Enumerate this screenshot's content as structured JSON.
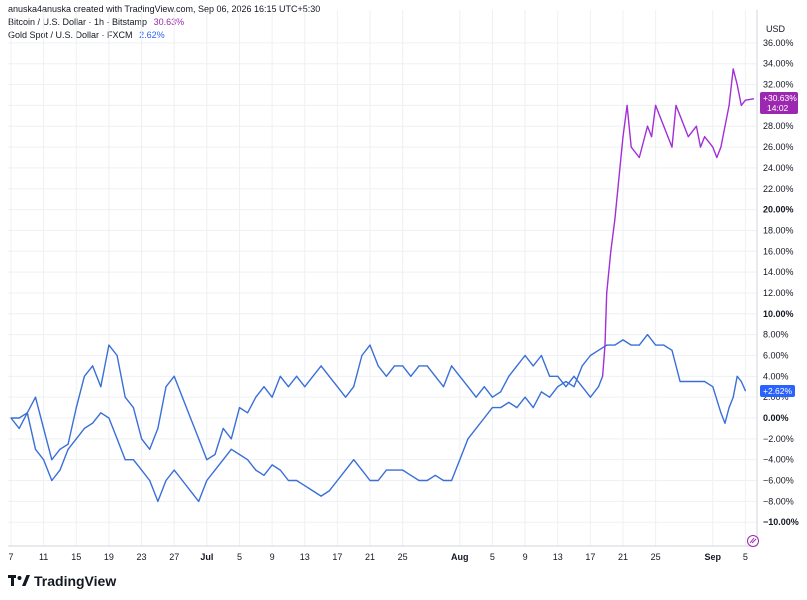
{
  "header": {
    "attribution": "anuska4anuska created with TradingView.com, Sep 06, 2026 16:15 UTC+5:30",
    "legend": [
      {
        "name": "Bitcoin / U.S. Dollar · 1h · Bitstamp",
        "value": "30.63%",
        "color": "#9c27b0"
      },
      {
        "name": "Gold Spot / U.S. Dollar · FXCM",
        "value": "2.62%",
        "color": "#2962ff"
      }
    ]
  },
  "axis": {
    "currency": "USD",
    "y_ticks": [
      {
        "label": "36.00%",
        "v": 36
      },
      {
        "label": "34.00%",
        "v": 34
      },
      {
        "label": "32.00%",
        "v": 32
      },
      {
        "label": "30.00%",
        "v": 30
      },
      {
        "label": "28.00%",
        "v": 28
      },
      {
        "label": "26.00%",
        "v": 26
      },
      {
        "label": "24.00%",
        "v": 24
      },
      {
        "label": "22.00%",
        "v": 22
      },
      {
        "label": "20.00%",
        "v": 20,
        "bold": true
      },
      {
        "label": "18.00%",
        "v": 18
      },
      {
        "label": "16.00%",
        "v": 16
      },
      {
        "label": "14.00%",
        "v": 14
      },
      {
        "label": "12.00%",
        "v": 12
      },
      {
        "label": "10.00%",
        "v": 10,
        "bold": true
      },
      {
        "label": "8.00%",
        "v": 8
      },
      {
        "label": "6.00%",
        "v": 6
      },
      {
        "label": "4.00%",
        "v": 4
      },
      {
        "label": "2.00%",
        "v": 2
      },
      {
        "label": "0.00%",
        "v": 0,
        "bold": true
      },
      {
        "label": "−2.00%",
        "v": -2
      },
      {
        "label": "−4.00%",
        "v": -4
      },
      {
        "label": "−6.00%",
        "v": -6
      },
      {
        "label": "−8.00%",
        "v": -8
      },
      {
        "label": "−10.00%",
        "v": -10,
        "bold": true
      }
    ],
    "x_ticks": [
      {
        "label": "7",
        "d": 0
      },
      {
        "label": "11",
        "d": 4
      },
      {
        "label": "15",
        "d": 8
      },
      {
        "label": "19",
        "d": 12
      },
      {
        "label": "23",
        "d": 16
      },
      {
        "label": "27",
        "d": 20
      },
      {
        "label": "Jul",
        "d": 24,
        "bold": true
      },
      {
        "label": "5",
        "d": 28
      },
      {
        "label": "9",
        "d": 32
      },
      {
        "label": "13",
        "d": 36
      },
      {
        "label": "17",
        "d": 40
      },
      {
        "label": "21",
        "d": 44
      },
      {
        "label": "25",
        "d": 48
      },
      {
        "label": "Aug",
        "d": 55,
        "bold": true
      },
      {
        "label": "5",
        "d": 59
      },
      {
        "label": "9",
        "d": 63
      },
      {
        "label": "13",
        "d": 67
      },
      {
        "label": "17",
        "d": 71
      },
      {
        "label": "21",
        "d": 75
      },
      {
        "label": "25",
        "d": 79
      },
      {
        "label": "Sep",
        "d": 86,
        "bold": true
      },
      {
        "label": "5",
        "d": 90
      }
    ]
  },
  "last_price_labels": {
    "btc_value": "+30.63%",
    "btc_time": "14:02",
    "gold_value": "+2.62%",
    "btc_color": "#9c27b0",
    "gold_color": "#2962ff"
  },
  "brand": {
    "name": "TradingView"
  },
  "chart_data": {
    "type": "line",
    "x_unit": "days since Jun 7",
    "y_unit": "percent change",
    "ylim": [
      -11.5,
      37
    ],
    "xlim": [
      0,
      91.5
    ],
    "grid": true,
    "series": [
      {
        "name": "Bitcoin / U.S. Dollar · 1h · Bitstamp",
        "color_blue_before": 72.5,
        "points": [
          [
            0,
            0
          ],
          [
            1,
            -1
          ],
          [
            2,
            0.5
          ],
          [
            3,
            2
          ],
          [
            4,
            -1
          ],
          [
            5,
            -4
          ],
          [
            6,
            -3
          ],
          [
            7,
            -2.5
          ],
          [
            8,
            1
          ],
          [
            9,
            4
          ],
          [
            10,
            5
          ],
          [
            11,
            3
          ],
          [
            12,
            7
          ],
          [
            13,
            6
          ],
          [
            14,
            2
          ],
          [
            15,
            1
          ],
          [
            16,
            -2
          ],
          [
            17,
            -3
          ],
          [
            18,
            -1
          ],
          [
            19,
            3
          ],
          [
            20,
            4
          ],
          [
            21,
            2
          ],
          [
            22,
            0
          ],
          [
            23,
            -2
          ],
          [
            24,
            -4
          ],
          [
            25,
            -3.5
          ],
          [
            26,
            -1
          ],
          [
            27,
            -2
          ],
          [
            28,
            1
          ],
          [
            29,
            0.5
          ],
          [
            30,
            2
          ],
          [
            31,
            3
          ],
          [
            32,
            2
          ],
          [
            33,
            4
          ],
          [
            34,
            3
          ],
          [
            35,
            4
          ],
          [
            36,
            3
          ],
          [
            37,
            4
          ],
          [
            38,
            5
          ],
          [
            39,
            4
          ],
          [
            40,
            3
          ],
          [
            41,
            2
          ],
          [
            42,
            3
          ],
          [
            43,
            6
          ],
          [
            44,
            7
          ],
          [
            45,
            5
          ],
          [
            46,
            4
          ],
          [
            47,
            5
          ],
          [
            48,
            5
          ],
          [
            49,
            4
          ],
          [
            50,
            5
          ],
          [
            51,
            5
          ],
          [
            52,
            4
          ],
          [
            53,
            3
          ],
          [
            54,
            5
          ],
          [
            55,
            4
          ],
          [
            56,
            3
          ],
          [
            57,
            2
          ],
          [
            58,
            3
          ],
          [
            59,
            2
          ],
          [
            60,
            2.5
          ],
          [
            61,
            4
          ],
          [
            62,
            5
          ],
          [
            63,
            6
          ],
          [
            64,
            5
          ],
          [
            65,
            6
          ],
          [
            66,
            4
          ],
          [
            67,
            4
          ],
          [
            68,
            3
          ],
          [
            69,
            4
          ],
          [
            70,
            3
          ],
          [
            71,
            2
          ],
          [
            72,
            3
          ],
          [
            72.5,
            4
          ],
          [
            72.8,
            7
          ],
          [
            73,
            12
          ],
          [
            73.5,
            16
          ],
          [
            74,
            19
          ],
          [
            74.5,
            23
          ],
          [
            75,
            27
          ],
          [
            75.5,
            30
          ],
          [
            76,
            26
          ],
          [
            77,
            25
          ],
          [
            78,
            28
          ],
          [
            78.5,
            27
          ],
          [
            79,
            30
          ],
          [
            80,
            28
          ],
          [
            80.5,
            27
          ],
          [
            81,
            26
          ],
          [
            81.5,
            30
          ],
          [
            82,
            29
          ],
          [
            83,
            27
          ],
          [
            84,
            28
          ],
          [
            84.5,
            26
          ],
          [
            85,
            27
          ],
          [
            86,
            26
          ],
          [
            86.5,
            25
          ],
          [
            87,
            26
          ],
          [
            87.5,
            28
          ],
          [
            88,
            30
          ],
          [
            88.5,
            33.5
          ],
          [
            89,
            32
          ],
          [
            89.5,
            30
          ],
          [
            90,
            30.5
          ],
          [
            91,
            30.63
          ]
        ]
      },
      {
        "name": "Gold Spot / U.S. Dollar · FXCM",
        "points": [
          [
            0,
            0
          ],
          [
            1,
            0
          ],
          [
            2,
            0.5
          ],
          [
            3,
            -3
          ],
          [
            4,
            -4
          ],
          [
            5,
            -6
          ],
          [
            6,
            -5
          ],
          [
            7,
            -3
          ],
          [
            8,
            -2
          ],
          [
            9,
            -1
          ],
          [
            10,
            -0.5
          ],
          [
            11,
            0.5
          ],
          [
            12,
            0
          ],
          [
            13,
            -2
          ],
          [
            14,
            -4
          ],
          [
            15,
            -4
          ],
          [
            16,
            -5
          ],
          [
            17,
            -6
          ],
          [
            18,
            -8
          ],
          [
            19,
            -6
          ],
          [
            20,
            -5
          ],
          [
            21,
            -6
          ],
          [
            22,
            -7
          ],
          [
            23,
            -8
          ],
          [
            24,
            -6
          ],
          [
            25,
            -5
          ],
          [
            26,
            -4
          ],
          [
            27,
            -3
          ],
          [
            28,
            -3.5
          ],
          [
            29,
            -4
          ],
          [
            30,
            -5
          ],
          [
            31,
            -5.5
          ],
          [
            32,
            -4.5
          ],
          [
            33,
            -5
          ],
          [
            34,
            -6
          ],
          [
            35,
            -6
          ],
          [
            36,
            -6.5
          ],
          [
            37,
            -7
          ],
          [
            38,
            -7.5
          ],
          [
            39,
            -7
          ],
          [
            40,
            -6
          ],
          [
            41,
            -5
          ],
          [
            42,
            -4
          ],
          [
            43,
            -5
          ],
          [
            44,
            -6
          ],
          [
            45,
            -6
          ],
          [
            46,
            -5
          ],
          [
            47,
            -5
          ],
          [
            48,
            -5
          ],
          [
            49,
            -5.5
          ],
          [
            50,
            -6
          ],
          [
            51,
            -6
          ],
          [
            52,
            -5.5
          ],
          [
            53,
            -6
          ],
          [
            54,
            -6
          ],
          [
            55,
            -4
          ],
          [
            56,
            -2
          ],
          [
            57,
            -1
          ],
          [
            58,
            0
          ],
          [
            59,
            1
          ],
          [
            60,
            1
          ],
          [
            61,
            1.5
          ],
          [
            62,
            1
          ],
          [
            63,
            2
          ],
          [
            64,
            1
          ],
          [
            65,
            2.5
          ],
          [
            66,
            2
          ],
          [
            67,
            3
          ],
          [
            68,
            3.5
          ],
          [
            69,
            3
          ],
          [
            70,
            5
          ],
          [
            71,
            6
          ],
          [
            72,
            6.5
          ],
          [
            73,
            7
          ],
          [
            74,
            7
          ],
          [
            75,
            7.5
          ],
          [
            76,
            7
          ],
          [
            77,
            7
          ],
          [
            78,
            8
          ],
          [
            79,
            7
          ],
          [
            80,
            7
          ],
          [
            81,
            6.5
          ],
          [
            82,
            3.5
          ],
          [
            83,
            3.5
          ],
          [
            84,
            3.5
          ],
          [
            85,
            3.5
          ],
          [
            86,
            3
          ],
          [
            87,
            0.5
          ],
          [
            87.5,
            -0.5
          ],
          [
            88,
            1
          ],
          [
            88.5,
            2
          ],
          [
            89,
            4
          ],
          [
            89.5,
            3.5
          ],
          [
            90,
            2.62
          ]
        ]
      }
    ]
  }
}
